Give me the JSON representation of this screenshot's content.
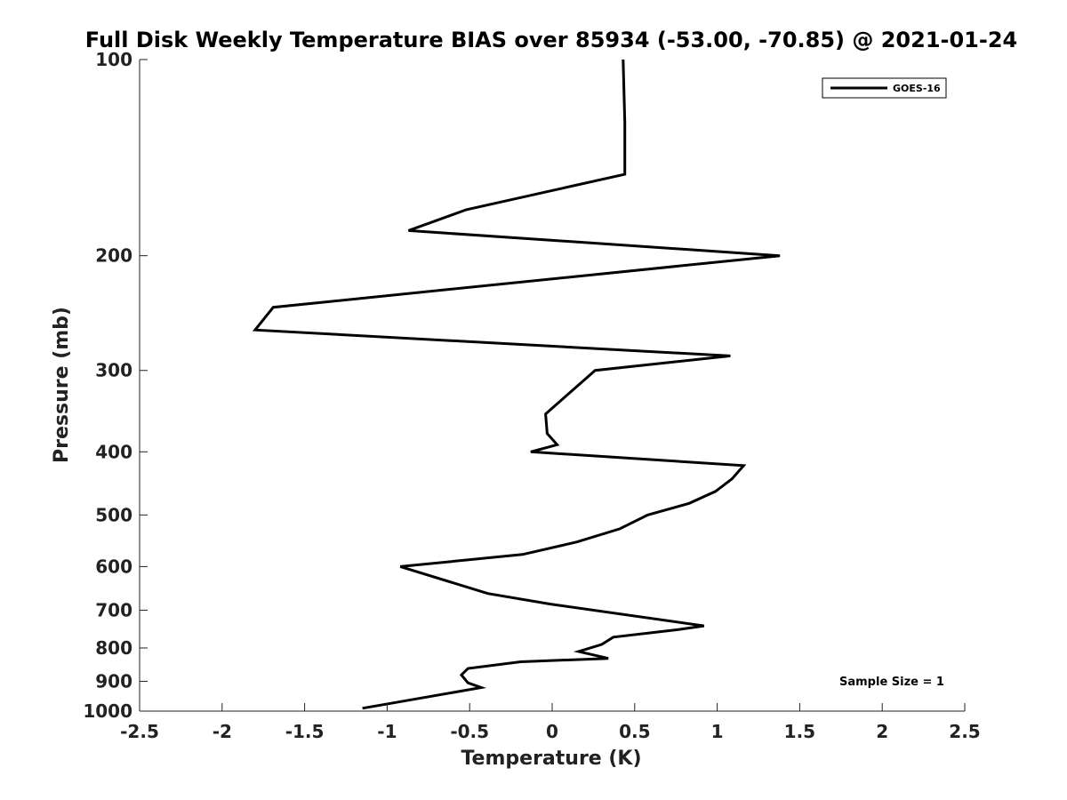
{
  "chart_data": {
    "type": "line",
    "title": "Full Disk Weekly Temperature BIAS over 85934 (-53.00, -70.85) @ 2021-01-24",
    "xlabel": "Temperature (K)",
    "ylabel": "Pressure (mb)",
    "xlim": [
      -2.5,
      2.5
    ],
    "ylim": [
      1000,
      100
    ],
    "yscale": "log",
    "xticks": [
      -2.5,
      -2,
      -1.5,
      -1,
      -0.5,
      0,
      0.5,
      1,
      1.5,
      2,
      2.5
    ],
    "xtick_labels": [
      "-2.5",
      "-2",
      "-1.5",
      "-1",
      "-0.5",
      "0",
      "0.5",
      "1",
      "1.5",
      "2",
      "2.5"
    ],
    "yticks": [
      100,
      200,
      300,
      400,
      500,
      600,
      700,
      800,
      900,
      1000
    ],
    "ytick_labels": [
      "100",
      "200",
      "300",
      "400",
      "500",
      "600",
      "700",
      "800",
      "900",
      "1000"
    ],
    "grid": false,
    "legend": {
      "position": "top-right",
      "entries": [
        "GOES-16"
      ]
    },
    "annotation": "Sample Size = 1",
    "series": [
      {
        "name": "GOES-16",
        "color": "#000000",
        "points": [
          [
            0.43,
            100
          ],
          [
            0.44,
            125
          ],
          [
            0.44,
            150
          ],
          [
            -0.52,
            170
          ],
          [
            -0.87,
            183
          ],
          [
            1.38,
            200
          ],
          [
            -1.69,
            240
          ],
          [
            -1.8,
            260
          ],
          [
            1.08,
            285
          ],
          [
            0.26,
            300
          ],
          [
            -0.04,
            350
          ],
          [
            -0.03,
            375
          ],
          [
            0.03,
            390
          ],
          [
            -0.13,
            400
          ],
          [
            1.16,
            420
          ],
          [
            1.09,
            440
          ],
          [
            0.99,
            460
          ],
          [
            0.83,
            480
          ],
          [
            0.58,
            500
          ],
          [
            0.41,
            525
          ],
          [
            0.15,
            550
          ],
          [
            -0.18,
            575
          ],
          [
            -0.92,
            600
          ],
          [
            -0.39,
            660
          ],
          [
            -0.01,
            685
          ],
          [
            0.92,
            740
          ],
          [
            0.76,
            750
          ],
          [
            0.37,
            770
          ],
          [
            0.3,
            790
          ],
          [
            0.16,
            810
          ],
          [
            0.34,
            830
          ],
          [
            -0.19,
            840
          ],
          [
            -0.51,
            860
          ],
          [
            -0.55,
            880
          ],
          [
            -0.51,
            905
          ],
          [
            -0.43,
            920
          ],
          [
            -1.15,
            990
          ]
        ]
      }
    ]
  }
}
